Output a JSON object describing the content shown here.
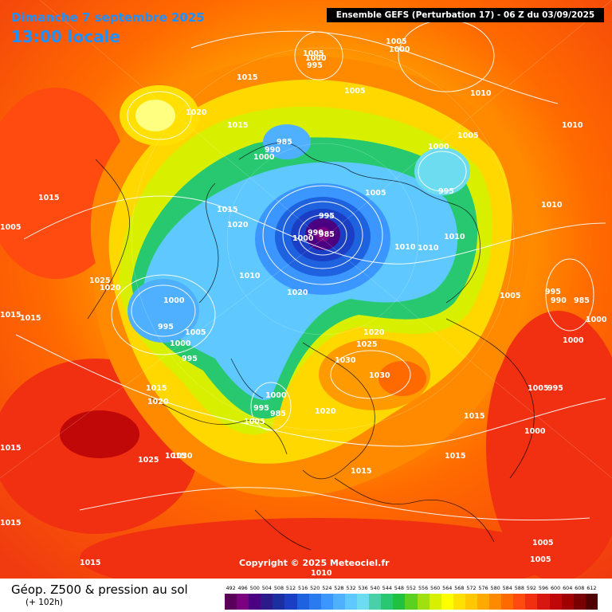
{
  "header": {
    "date": "Dimanche 7 septembre 2025",
    "time": "13:00 locale",
    "run": "Ensemble GEFS  (Perturbation 17)  -  06 Z du 03/09/2025"
  },
  "copyright": "Copyright © 2025 Meteociel.fr",
  "footer": {
    "title": "Géop. Z500 & pression au sol",
    "subtitle": "(+ 102h)"
  },
  "scale": {
    "labels": [
      "492",
      "496",
      "500",
      "504",
      "508",
      "512",
      "516",
      "520",
      "524",
      "528",
      "532",
      "536",
      "540",
      "544",
      "548",
      "552",
      "556",
      "560",
      "564",
      "568",
      "572",
      "576",
      "580",
      "584",
      "588",
      "592",
      "596",
      "600",
      "604",
      "608",
      "612"
    ],
    "colors": [
      "#5a005a",
      "#7a0080",
      "#4b0082",
      "#2a1a8a",
      "#1c2fa0",
      "#1a3fc4",
      "#1e62e0",
      "#2a7bf0",
      "#3c96ff",
      "#4fb0ff",
      "#5ec8ff",
      "#6edcf0",
      "#4ad0a8",
      "#28c870",
      "#20c040",
      "#5ad020",
      "#a0e010",
      "#d8f000",
      "#ffff00",
      "#ffe000",
      "#ffc800",
      "#ffaa00",
      "#ff8a00",
      "#ff6a00",
      "#ff4a10",
      "#f03010",
      "#d81810",
      "#c00808",
      "#a00000",
      "#7a0000",
      "#500000"
    ]
  },
  "pressure_labels": [
    "1005",
    "1000",
    "1005",
    "1000",
    "995",
    "1015",
    "1020",
    "1015",
    "985",
    "990",
    "1000",
    "1005",
    "1010",
    "1010",
    "1005",
    "1000",
    "995",
    "1005",
    "1015",
    "1015",
    "1020",
    "995",
    "990",
    "985",
    "1000",
    "1005",
    "1010",
    "1010",
    "1010",
    "1010",
    "1015",
    "1025",
    "1020",
    "1000",
    "995",
    "1005",
    "1000",
    "995",
    "1015",
    "1020",
    "1025",
    "1030",
    "1030",
    "1020",
    "1010",
    "1000",
    "995",
    "985",
    "1005",
    "1020",
    "1005",
    "995",
    "990",
    "985",
    "1000",
    "1000",
    "1005",
    "995",
    "1015",
    "1020",
    "1025",
    "1015",
    "1030",
    "1000",
    "1015",
    "1015",
    "1015",
    "1015",
    "1015",
    "1005",
    "1005",
    "1015",
    "1010"
  ]
}
